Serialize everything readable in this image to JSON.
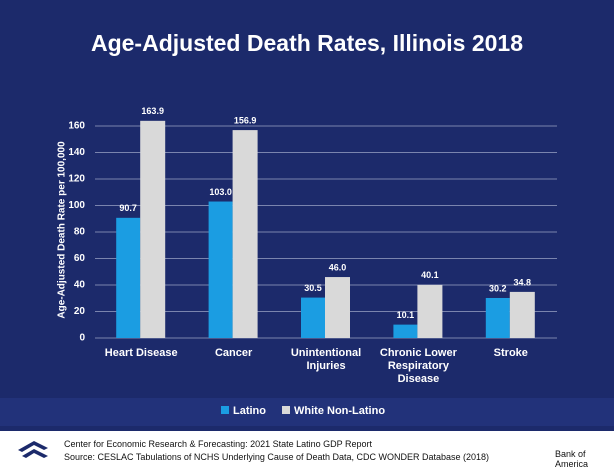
{
  "chart_data": {
    "type": "bar",
    "title": "Age-Adjusted Death Rates, Illinois 2018",
    "y_label": "Age-Adjusted Death Rate per 100,000",
    "categories": [
      "Heart Disease",
      "Cancer",
      "Unintentional Injuries",
      "Chronic Lower Respiratory Disease",
      "Stroke"
    ],
    "series": [
      {
        "name": "Latino",
        "color": "#1b9de2",
        "values": [
          90.7,
          103,
          30.5,
          10.1,
          30.2
        ],
        "value_labels": [
          "90.7",
          "103.0",
          "30.5",
          "10.1",
          "30.2"
        ]
      },
      {
        "name": "White Non-Latino",
        "color": "#d9d9d9",
        "values": [
          163.9,
          156.9,
          46,
          40.1,
          34.8
        ],
        "value_labels": [
          "163.9",
          "156.9",
          "46.0",
          "40.1",
          "34.8"
        ]
      }
    ],
    "ylim": [
      0,
      160
    ],
    "yticks": [
      0,
      20,
      40,
      60,
      80,
      100,
      120,
      140,
      160
    ],
    "grid": true,
    "legend": "bottom"
  },
  "footer": {
    "lines": [
      "Center for Economic Research & Forecasting: 2021 State Latino GDP Report",
      "Source: CESLAC Tabulations of NCHS Underlying Cause of Death Data, CDC WONDER Database (2018)"
    ],
    "brand": "Bank of America"
  }
}
